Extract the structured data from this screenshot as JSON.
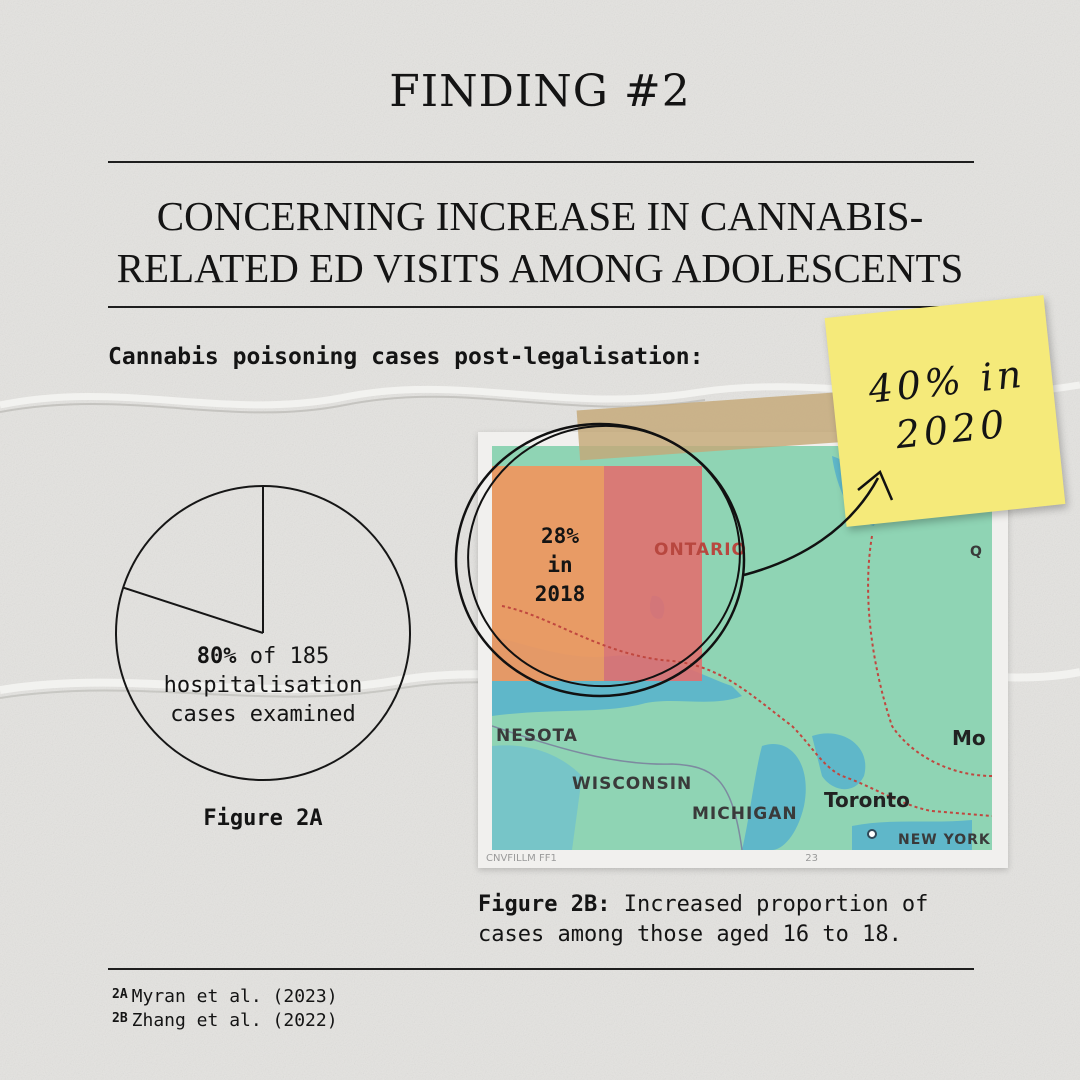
{
  "header": {
    "finding_title": "FINDING #2",
    "headline_line1": "CONCERNING INCREASE IN CANNABIS-",
    "headline_line2": "RELATED ED VISITS AMONG ADOLESCENTS"
  },
  "subheading": "Cannabis poisoning cases post-legalisation:",
  "figure_2a": {
    "percent": "80%",
    "label_rest_line1": " of 185",
    "label_line2": "hospitalisation",
    "label_line3": "cases examined",
    "caption": "Figure 2A",
    "slice_fraction": 0.8
  },
  "figure_2b": {
    "map_labels": {
      "ontario": "ONTARIO",
      "nesota": "NESOTA",
      "wisconsin": "WISCONSIN",
      "michigan": "MICHIGAN",
      "toronto": "Toronto",
      "new_york": "NEW YORK",
      "mo": "Mo",
      "q": "Q"
    },
    "map_footer_left": "CNVFILLM FF1",
    "map_footer_right": "23",
    "callout_2018_line1": "28%",
    "callout_2018_line2": "in",
    "callout_2018_line3": "2018",
    "caption_bold": "Figure 2B:",
    "caption_rest": " Increased proportion of cases among those aged 16 to 18."
  },
  "sticky_note": {
    "line1": "40% in",
    "line2": "2020"
  },
  "references": [
    {
      "key": "2A",
      "text": "Myran et al. (2023)"
    },
    {
      "key": "2B",
      "text": "Zhang et al. (2022)"
    }
  ],
  "colors": {
    "background": "#e4e3e0",
    "ink": "#141414",
    "map_land": "#8fd4b4",
    "map_water": "#5fb7c9",
    "highlight_orange": "#f0965e",
    "highlight_red": "#e46d6d",
    "sticky_yellow": "#f5ea7a",
    "tape": "#c4a878"
  }
}
